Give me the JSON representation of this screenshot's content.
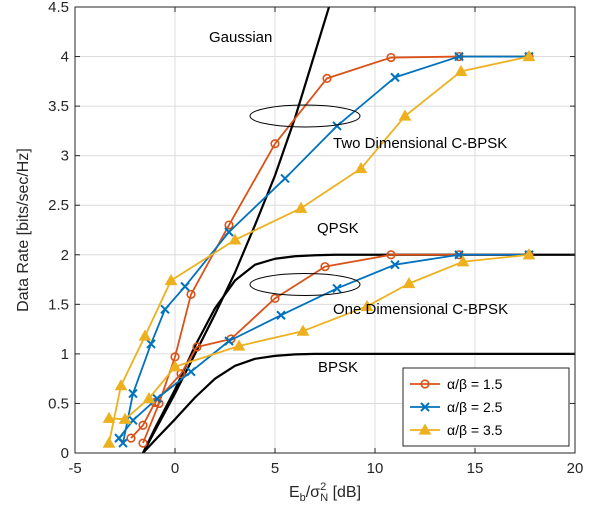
{
  "chart_data": {
    "type": "line",
    "title": "",
    "xlabel": {
      "base": "E",
      "sub1": "b",
      "mid": "/σ",
      "sup": "2",
      "sub2": "N",
      "tail": " [dB]"
    },
    "ylabel": "Data Rate [bits/sec/Hz]",
    "xlim": [
      -5,
      20
    ],
    "ylim": [
      0,
      4.5
    ],
    "xticks": [
      -5,
      0,
      5,
      10,
      15,
      20
    ],
    "yticks": [
      0,
      0.5,
      1,
      1.5,
      2,
      2.5,
      3,
      3.5,
      4,
      4.5
    ],
    "xtick_labels": [
      "-5",
      "0",
      "5",
      "10",
      "15",
      "20"
    ],
    "ytick_labels": [
      "0",
      "0.5",
      "1",
      "1.5",
      "2",
      "2.5",
      "3",
      "3.5",
      "4",
      "4.5"
    ],
    "grid": true,
    "legend_position": "bottom-right",
    "colors": {
      "gaussian": "#000000",
      "s15": "#d95319",
      "s25": "#0072bd",
      "s35": "#edb120"
    },
    "annotations": [
      "Gaussian",
      "Two Dimensional C-BPSK",
      "QPSK",
      "One Dimensional C-BPSK",
      "BPSK"
    ],
    "reference_curves": [
      {
        "id": "gaussian",
        "x": [
          -1.6,
          0,
          1,
          2,
          3,
          4,
          5,
          6,
          7.7
        ],
        "y": [
          0,
          0.6,
          1.0,
          1.4,
          1.82,
          2.3,
          2.8,
          3.38,
          4.5
        ]
      },
      {
        "id": "qpsk",
        "x": [
          -1.6,
          -1,
          0,
          1,
          2,
          3,
          4,
          5,
          6,
          7,
          8,
          10,
          12,
          14,
          16,
          20
        ],
        "y": [
          0,
          0.25,
          0.64,
          1.08,
          1.46,
          1.74,
          1.9,
          1.96,
          1.985,
          1.995,
          2.0,
          2.0,
          2.0,
          2.0,
          2.0,
          2.0
        ]
      },
      {
        "id": "bpsk",
        "x": [
          -1.6,
          -1,
          0,
          1,
          2,
          3,
          4,
          5,
          6,
          7,
          8,
          10,
          12,
          14,
          16,
          20
        ],
        "y": [
          0,
          0.13,
          0.34,
          0.56,
          0.75,
          0.88,
          0.95,
          0.98,
          0.995,
          1.0,
          1.0,
          1.0,
          1.0,
          1.0,
          1.0,
          1.0
        ]
      }
    ],
    "series": [
      {
        "name": "α/β = 1.5",
        "group": "two-dimensional",
        "x": [
          -1.6,
          -0.8,
          0,
          0.8,
          2.7,
          5,
          7.6,
          10.8,
          14.2,
          17.7
        ],
        "y": [
          0.1,
          0.5,
          0.97,
          1.6,
          2.3,
          3.12,
          3.78,
          3.99,
          4.0,
          4.0
        ]
      },
      {
        "name": "α/β = 2.5",
        "group": "two-dimensional",
        "x": [
          -2.6,
          -2.1,
          -1.2,
          -0.5,
          0.5,
          2.7,
          5.5,
          8.1,
          11.0,
          14.2,
          17.7
        ],
        "y": [
          0.1,
          0.6,
          1.1,
          1.45,
          1.68,
          2.23,
          2.77,
          3.3,
          3.79,
          4.0,
          4.0
        ]
      },
      {
        "name": "α/β = 3.5",
        "group": "two-dimensional",
        "x": [
          -3.3,
          -2.7,
          -1.5,
          -0.2,
          3.0,
          6.3,
          9.3,
          11.5,
          14.3,
          17.7
        ],
        "y": [
          0.1,
          0.68,
          1.18,
          1.74,
          2.15,
          2.47,
          2.87,
          3.4,
          3.85,
          4.0
        ]
      },
      {
        "name": "α/β = 1.5",
        "group": "one-dimensional",
        "x": [
          -2.2,
          -1.6,
          -1.0,
          0.3,
          1.1,
          2.8,
          5.0,
          7.5,
          10.8,
          14.2,
          17.7
        ],
        "y": [
          0.15,
          0.28,
          0.51,
          0.8,
          1.07,
          1.15,
          1.56,
          1.88,
          2.0,
          2.0,
          2.0
        ]
      },
      {
        "name": "α/β = 2.5",
        "group": "one-dimensional",
        "x": [
          -2.8,
          -2.1,
          -0.9,
          0.8,
          2.7,
          5.3,
          8.1,
          11.0,
          14.2,
          17.7
        ],
        "y": [
          0.15,
          0.33,
          0.55,
          0.82,
          1.13,
          1.39,
          1.66,
          1.9,
          2.0,
          2.0
        ]
      },
      {
        "name": "α/β = 3.5",
        "group": "one-dimensional",
        "x": [
          -3.3,
          -2.5,
          -1.3,
          0,
          3.2,
          6.4,
          9.6,
          11.7,
          14.4,
          17.7
        ],
        "y": [
          0.35,
          0.34,
          0.55,
          0.87,
          1.08,
          1.23,
          1.48,
          1.71,
          1.93,
          2.0
        ]
      }
    ],
    "legend": [
      {
        "label": "α/β = 1.5",
        "marker": "circle",
        "color": "#d95319"
      },
      {
        "label": "α/β = 2.5",
        "marker": "x",
        "color": "#0072bd"
      },
      {
        "label": "α/β = 3.5",
        "marker": "triangle",
        "color": "#edb120"
      }
    ]
  }
}
